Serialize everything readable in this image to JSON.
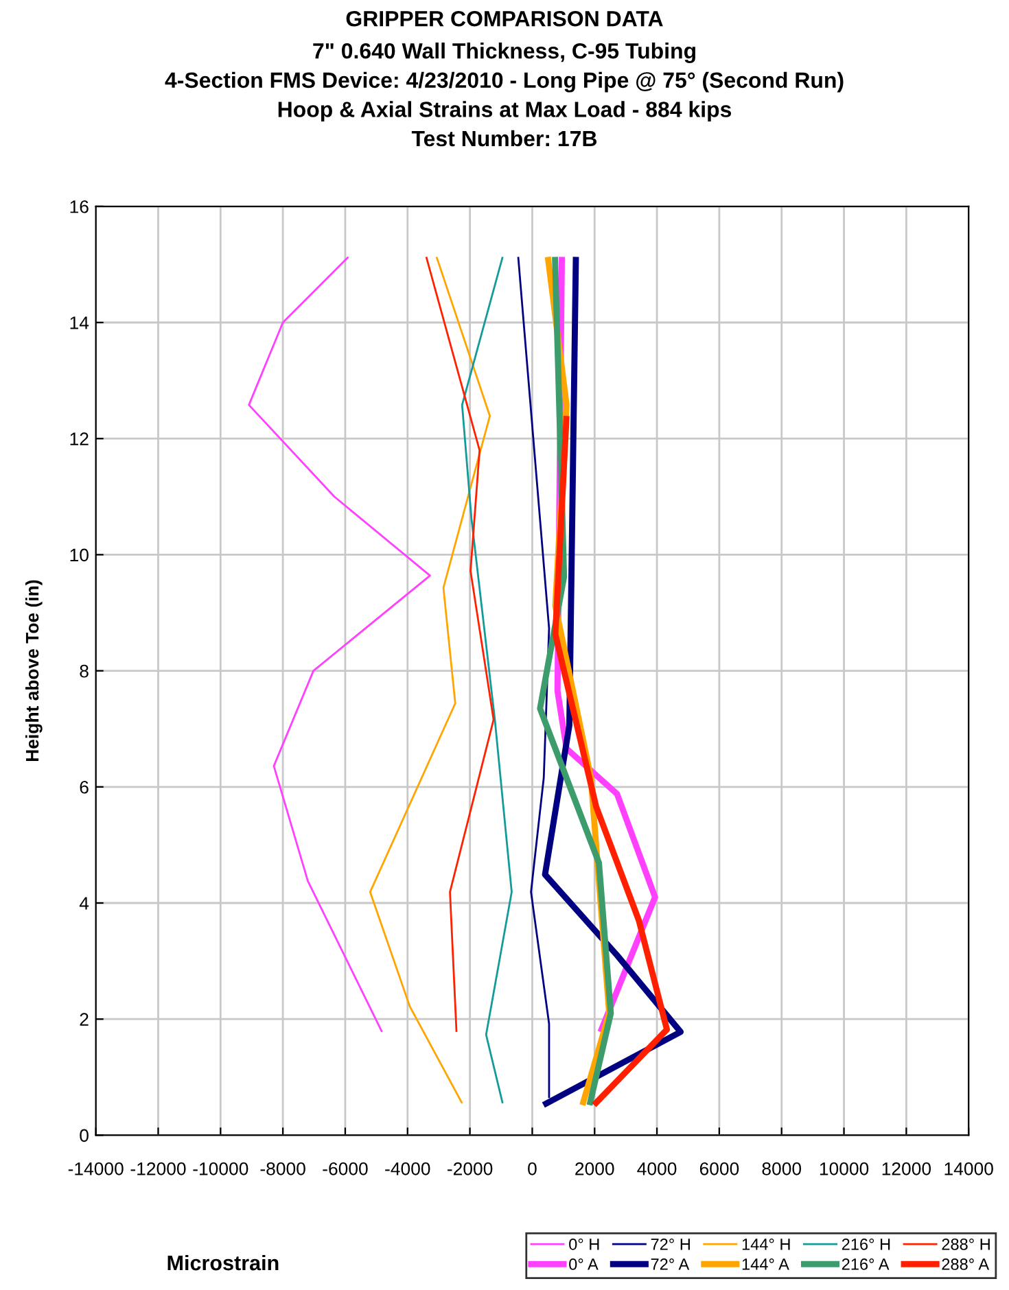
{
  "chart_data": {
    "type": "line",
    "title": "GRIPPER COMPARISON DATA",
    "subtitle": "7\" 0.640 Wall Thickness, C-95 Tubing\n4-Section FMS Device: 4/23/2010 - Long Pipe @ 75° (Second Run)\nHoop & Axial Strains at Max Load - 884 kips\nTest Number: 17B",
    "xlabel": "Microstrain",
    "ylabel": "Height above Toe (in)",
    "xlim": [
      -14000,
      14000
    ],
    "xticks": [
      -14000,
      -12000,
      -10000,
      -8000,
      -6000,
      -4000,
      -2000,
      0,
      2000,
      4000,
      6000,
      8000,
      10000,
      12000,
      14000
    ],
    "ylim": [
      0,
      16
    ],
    "yticks": [
      0,
      2,
      4,
      6,
      8,
      10,
      12,
      14,
      16
    ],
    "grid": true,
    "legend": "bottom right",
    "marker": "none",
    "series": [
      {
        "name": "0° H",
        "color": "#ff40ff",
        "x": [
          -5900,
          -8000,
          -9090,
          -6350,
          -3280,
          -7020,
          -8290,
          -7200,
          -4820
        ],
        "values": [
          15.13,
          14.0,
          12.58,
          11.0,
          9.64,
          8.0,
          6.36,
          4.38,
          1.78
        ]
      },
      {
        "name": "72° H",
        "color": "#000080",
        "x": [
          -450,
          540,
          370,
          -40,
          540,
          540
        ],
        "values": [
          15.13,
          8.73,
          6.16,
          4.19,
          1.92,
          0.64
        ]
      },
      {
        "name": "144° H",
        "color": "#ffa500",
        "x": [
          -3070,
          -1360,
          -2850,
          -2470,
          -5200,
          -3930,
          -2250
        ],
        "values": [
          15.13,
          12.39,
          9.43,
          7.44,
          4.19,
          2.22,
          0.55
        ]
      },
      {
        "name": "216° H",
        "color": "#139a9a",
        "x": [
          -950,
          -2250,
          -1950,
          -1200,
          -660,
          -1480,
          -950
        ],
        "values": [
          15.13,
          12.58,
          10.62,
          7.16,
          4.19,
          1.73,
          0.55
        ]
      },
      {
        "name": "288° H",
        "color": "#ff2000",
        "x": [
          -3400,
          -1690,
          -1980,
          -1240,
          -2640,
          -2430
        ],
        "values": [
          15.13,
          11.8,
          9.72,
          7.16,
          4.19,
          1.78
        ]
      },
      {
        "name": "0° A",
        "color": "#ff40ff",
        "x": [
          950,
          810,
          1100,
          2720,
          3940,
          2190
        ],
        "values": [
          15.13,
          7.65,
          6.66,
          5.88,
          4.1,
          1.78
        ]
      },
      {
        "name": "72° A",
        "color": "#000080",
        "x": [
          1400,
          1190,
          410,
          2720,
          4760,
          360
        ],
        "values": [
          15.13,
          7.06,
          4.49,
          3.1,
          1.78,
          0.52
        ]
      },
      {
        "name": "144° A",
        "color": "#ffa500",
        "x": [
          500,
          1100,
          740,
          1880,
          2470,
          1610
        ],
        "values": [
          15.13,
          12.58,
          9.12,
          6.16,
          2.1,
          0.52
        ]
      },
      {
        "name": "216° A",
        "color": "#3c9c6c",
        "x": [
          730,
          1020,
          250,
          2140,
          2520,
          1840
        ],
        "values": [
          15.13,
          9.62,
          7.35,
          4.69,
          2.1,
          0.52
        ]
      },
      {
        "name": "288° A",
        "color": "#ff2000",
        "x": [
          1100,
          740,
          2050,
          3420,
          4320,
          1980
        ],
        "values": [
          12.39,
          8.63,
          5.66,
          3.7,
          1.82,
          0.52
        ]
      }
    ]
  }
}
